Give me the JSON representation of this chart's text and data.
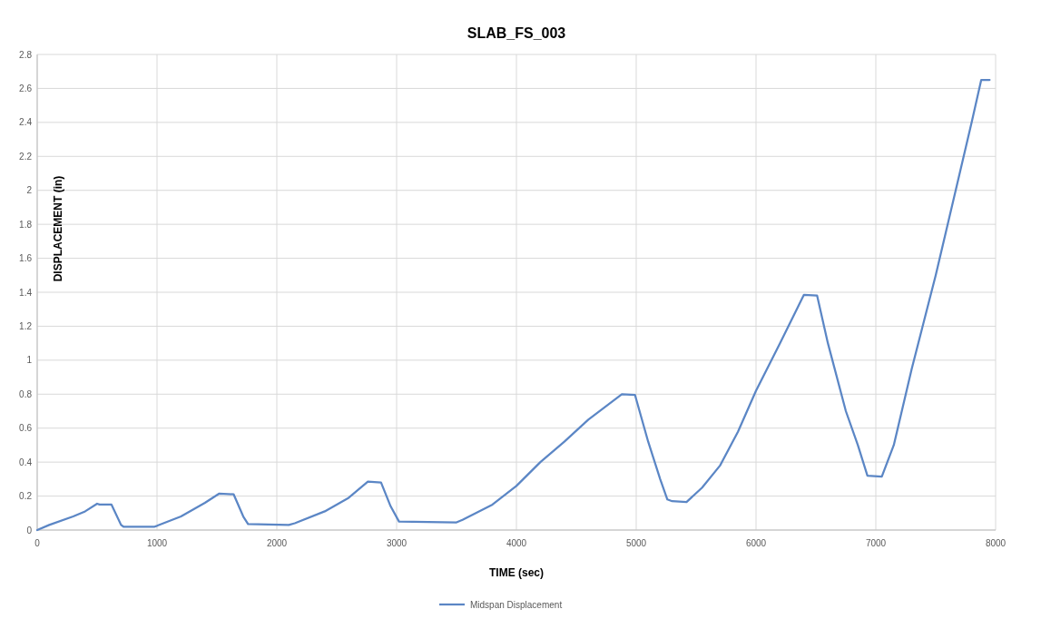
{
  "chart_data": {
    "type": "line",
    "title": "SLAB_FS_003",
    "xlabel": "TIME (sec)",
    "ylabel": "DISPLACEMENT (in)",
    "xlim": [
      0,
      8000
    ],
    "xticks": [
      0,
      1000,
      2000,
      3000,
      4000,
      5000,
      6000,
      7000,
      8000
    ],
    "ylim": [
      0,
      2.8
    ],
    "yticks": [
      0,
      0.2,
      0.4,
      0.6,
      0.8,
      1,
      1.2,
      1.4,
      1.6,
      1.8,
      2,
      2.2,
      2.4,
      2.6,
      2.8
    ],
    "grid": true,
    "legend": "bottom",
    "marker": "none",
    "line_style": "solid",
    "series": [
      {
        "name": "Midspan Displacement",
        "color": "#5b86c5",
        "x": [
          0,
          100,
          300,
          400,
          500,
          520,
          620,
          700,
          720,
          980,
          1000,
          1200,
          1400,
          1520,
          1640,
          1720,
          1760,
          2100,
          2150,
          2400,
          2600,
          2760,
          2870,
          2950,
          3020,
          3500,
          3550,
          3800,
          4000,
          4200,
          4400,
          4600,
          4880,
          4990,
          5100,
          5200,
          5260,
          5300,
          5420,
          5550,
          5700,
          5850,
          6000,
          6200,
          6400,
          6510,
          6600,
          6750,
          6850,
          6930,
          7050,
          7150,
          7300,
          7500,
          7700,
          7800,
          7880,
          7950
        ],
        "values": [
          0,
          0.03,
          0.08,
          0.11,
          0.155,
          0.15,
          0.15,
          0.03,
          0.02,
          0.02,
          0.025,
          0.08,
          0.16,
          0.215,
          0.21,
          0.08,
          0.035,
          0.03,
          0.04,
          0.11,
          0.19,
          0.285,
          0.28,
          0.14,
          0.05,
          0.045,
          0.06,
          0.15,
          0.26,
          0.4,
          0.52,
          0.65,
          0.8,
          0.795,
          0.52,
          0.3,
          0.18,
          0.17,
          0.165,
          0.25,
          0.38,
          0.58,
          0.82,
          1.1,
          1.385,
          1.38,
          1.1,
          0.7,
          0.5,
          0.32,
          0.315,
          0.5,
          0.95,
          1.5,
          2.1,
          2.4,
          2.65,
          2.65
        ]
      }
    ]
  }
}
